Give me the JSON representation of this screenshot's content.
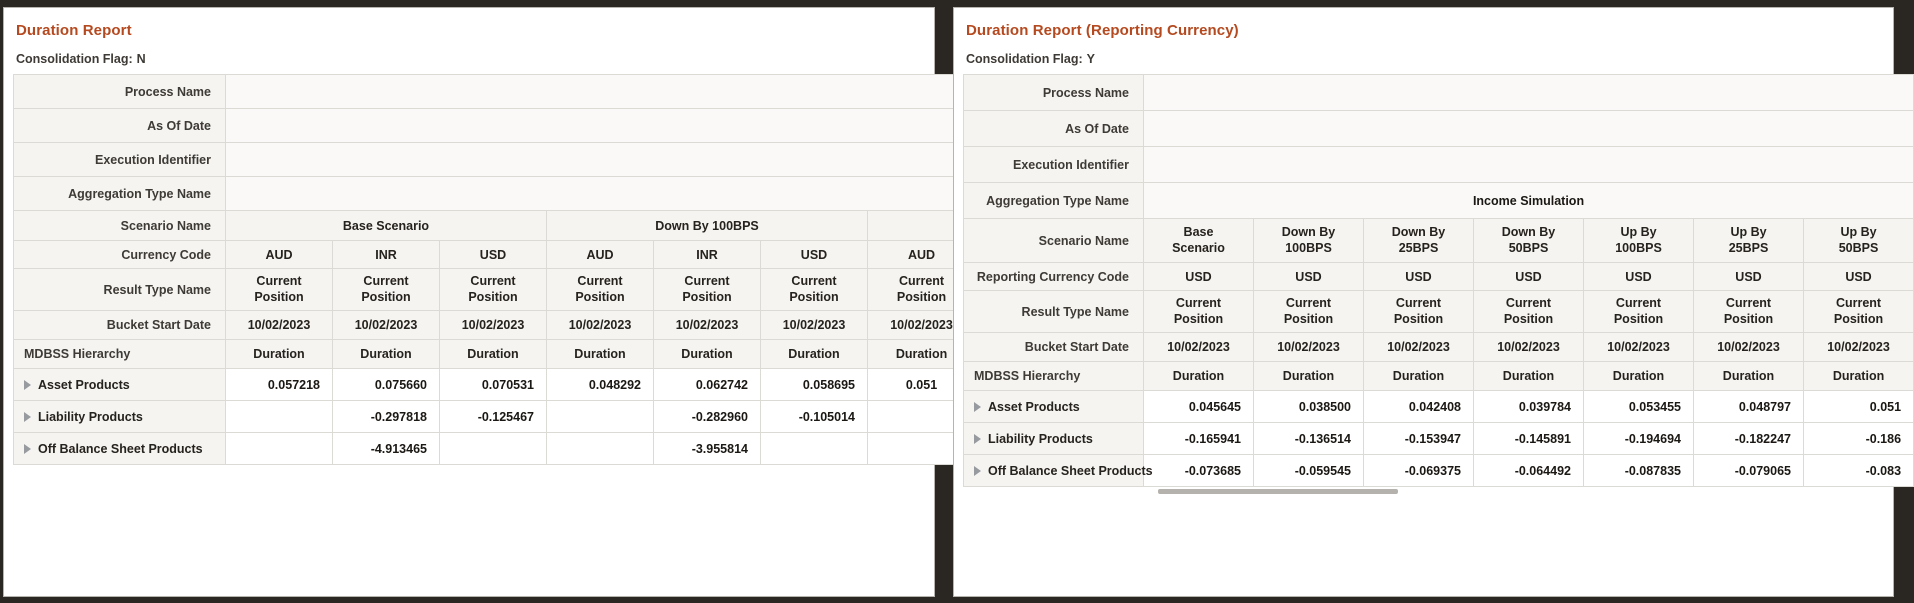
{
  "colors": {
    "title_accent": "#b5491f",
    "page_background": "#2a2622",
    "header_cell_background": "#f5f4f1",
    "grid_border": "#dcdad5",
    "label_text": "#3e3a35",
    "value_text": "#1b1814",
    "scrollbar_thumb": "#b5b2ad"
  },
  "icons": {
    "expand_icon": "triangle-right"
  },
  "panels": [
    {
      "title": "Duration Report",
      "consolidation": {
        "label": "Consolidation Flag:",
        "value": "N"
      },
      "meta_rows": [
        {
          "label": "Process Name",
          "value": ""
        },
        {
          "label": "As Of Date",
          "value": ""
        },
        {
          "label": "Execution Identifier",
          "value": ""
        },
        {
          "label": "Aggregation Type Name",
          "value": ""
        }
      ],
      "scenario_row": {
        "label": "Scenario Name",
        "groups": [
          {
            "label": "Base Scenario",
            "span": 3
          },
          {
            "label": "Down By 100BPS",
            "span": 3
          },
          {
            "label": "",
            "span": 1
          }
        ]
      },
      "currency_row": {
        "label": "Currency Code",
        "values": [
          "AUD",
          "INR",
          "USD",
          "AUD",
          "INR",
          "USD",
          "AUD"
        ]
      },
      "result_row": {
        "label": "Result Type Name",
        "values": [
          "Current Position",
          "Current Position",
          "Current Position",
          "Current Position",
          "Current Position",
          "Current Position",
          "Current Position"
        ]
      },
      "bucket_row": {
        "label": "Bucket Start Date",
        "values": [
          "10/02/2023",
          "10/02/2023",
          "10/02/2023",
          "10/02/2023",
          "10/02/2023",
          "10/02/2023",
          "10/02/2023"
        ]
      },
      "hierarchy_header": {
        "label": "MDBSS Hierarchy",
        "values": [
          "Duration",
          "Duration",
          "Duration",
          "Duration",
          "Duration",
          "Duration",
          "Duration"
        ]
      },
      "data_rows": [
        {
          "label": "Asset Products",
          "expandable": true,
          "values": [
            "0.057218",
            "0.075660",
            "0.070531",
            "0.048292",
            "0.062742",
            "0.058695",
            "0.051"
          ]
        },
        {
          "label": "Liability Products",
          "expandable": true,
          "values": [
            "",
            "-0.297818",
            "-0.125467",
            "",
            "-0.282960",
            "-0.105014",
            ""
          ]
        },
        {
          "label": "Off Balance Sheet Products",
          "expandable": true,
          "values": [
            "",
            "-4.913465",
            "",
            "",
            "-3.955814",
            "",
            ""
          ]
        }
      ],
      "has_hscrollbar": false
    },
    {
      "title": "Duration Report (Reporting Currency)",
      "consolidation": {
        "label": "Consolidation Flag:",
        "value": "Y"
      },
      "meta_rows": [
        {
          "label": "Process Name",
          "value": ""
        },
        {
          "label": "As Of Date",
          "value": ""
        },
        {
          "label": "Execution Identifier",
          "value": ""
        },
        {
          "label": "Aggregation Type Name",
          "value": "Income Simulation"
        }
      ],
      "scenario_row": {
        "label": "Scenario Name",
        "groups": [
          {
            "label": "Base Scenario",
            "span": 1
          },
          {
            "label": "Down By 100BPS",
            "span": 1
          },
          {
            "label": "Down By 25BPS",
            "span": 1
          },
          {
            "label": "Down By 50BPS",
            "span": 1
          },
          {
            "label": "Up By 100BPS",
            "span": 1
          },
          {
            "label": "Up By 25BPS",
            "span": 1
          },
          {
            "label": "Up By 50BPS",
            "span": 1
          }
        ]
      },
      "currency_row": {
        "label": "Reporting Currency Code",
        "values": [
          "USD",
          "USD",
          "USD",
          "USD",
          "USD",
          "USD",
          "USD"
        ]
      },
      "result_row": {
        "label": "Result Type Name",
        "values": [
          "Current Position",
          "Current Position",
          "Current Position",
          "Current Position",
          "Current Position",
          "Current Position",
          "Current Position"
        ]
      },
      "bucket_row": {
        "label": "Bucket Start Date",
        "values": [
          "10/02/2023",
          "10/02/2023",
          "10/02/2023",
          "10/02/2023",
          "10/02/2023",
          "10/02/2023",
          "10/02/2023"
        ]
      },
      "hierarchy_header": {
        "label": "MDBSS Hierarchy",
        "values": [
          "Duration",
          "Duration",
          "Duration",
          "Duration",
          "Duration",
          "Duration",
          "Duration"
        ]
      },
      "data_rows": [
        {
          "label": "Asset Products",
          "expandable": true,
          "values": [
            "0.045645",
            "0.038500",
            "0.042408",
            "0.039784",
            "0.053455",
            "0.048797",
            "0.051"
          ]
        },
        {
          "label": "Liability Products",
          "expandable": true,
          "values": [
            "-0.165941",
            "-0.136514",
            "-0.153947",
            "-0.145891",
            "-0.194694",
            "-0.182247",
            "-0.186"
          ]
        },
        {
          "label": "Off Balance Sheet Products",
          "expandable": true,
          "values": [
            "-0.073685",
            "-0.059545",
            "-0.069375",
            "-0.064492",
            "-0.087835",
            "-0.079065",
            "-0.083"
          ]
        }
      ],
      "has_hscrollbar": true
    }
  ]
}
